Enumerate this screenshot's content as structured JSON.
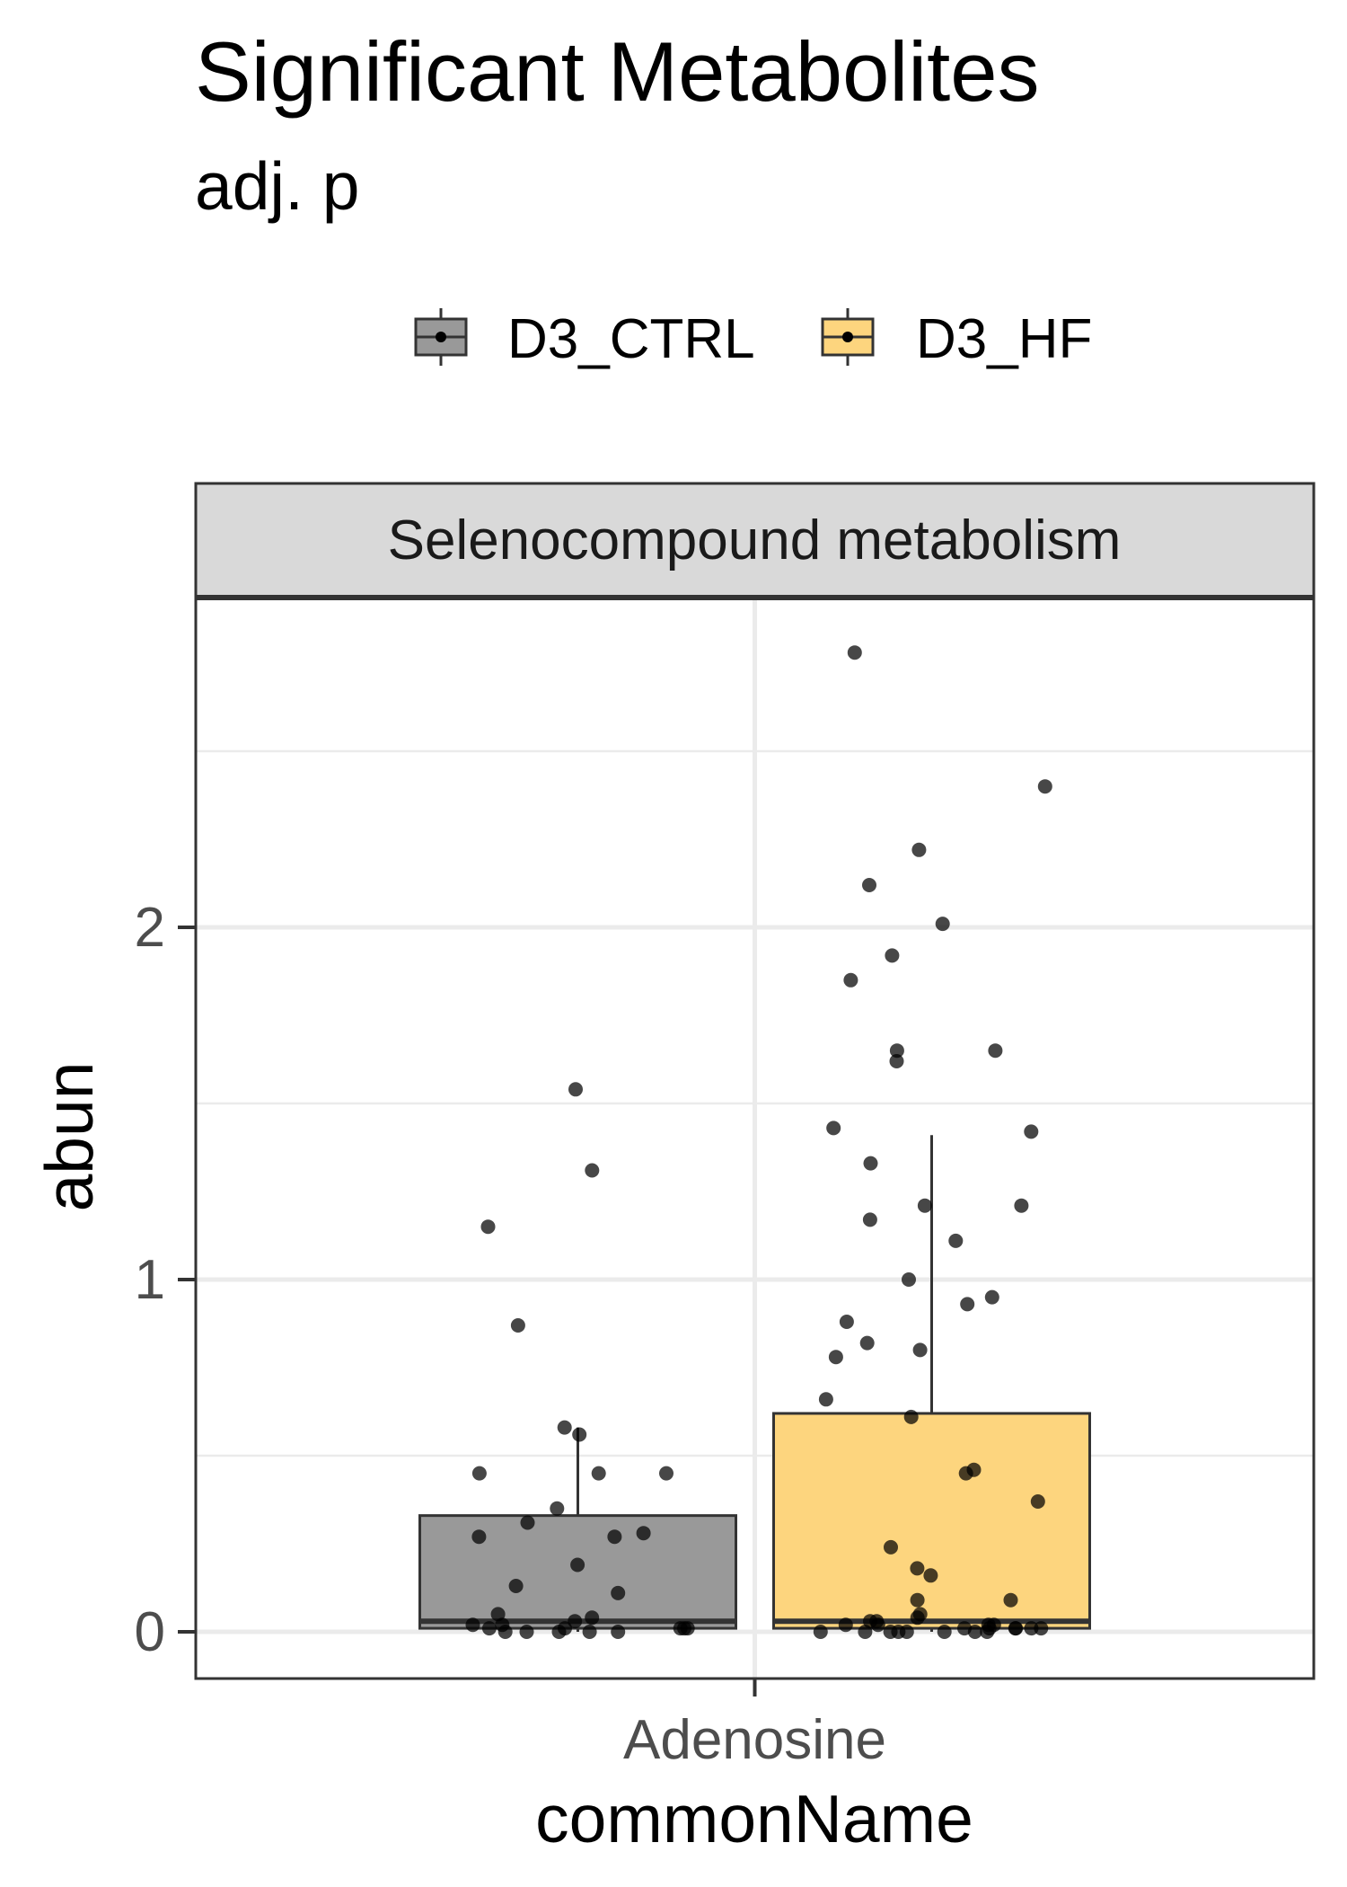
{
  "chart_data": {
    "type": "box",
    "title": "Significant Metabolites",
    "subtitle": "adj. p",
    "facet_label": "Selenocompound metabolism",
    "xlabel": "commonName",
    "ylabel": "abun",
    "categories": [
      "Adenosine"
    ],
    "ylim": [
      -0.13,
      2.88
    ],
    "yticks": [
      0,
      1,
      2
    ],
    "ytick_labels": [
      "0",
      "1",
      "2"
    ],
    "grid": true,
    "legend_position": "top",
    "legend_entries": [
      "D3_CTRL",
      "D3_HF"
    ],
    "series": [
      {
        "name": "D3_CTRL",
        "color": "#999999",
        "box": {
          "min": 0.0,
          "q1": 0.01,
          "median": 0.03,
          "q3": 0.33,
          "max": 0.58
        },
        "points": [
          1.54,
          1.31,
          1.15,
          0.87,
          0.58,
          0.56,
          0.45,
          0.45,
          0.45,
          0.35,
          0.31,
          0.28,
          0.27,
          0.27,
          0.19,
          0.13,
          0.11,
          0.05,
          0.04,
          0.03,
          0.02,
          0.02,
          0.01,
          0.01,
          0.01,
          0.01,
          0.01,
          0.0,
          0.0,
          0.0,
          0.0,
          0.0
        ]
      },
      {
        "name": "D3_HF",
        "color": "#fdd57e",
        "box": {
          "min": 0.0,
          "q1": 0.01,
          "median": 0.03,
          "q3": 0.62,
          "max": 1.41
        },
        "points": [
          2.78,
          2.4,
          2.22,
          2.12,
          2.01,
          1.92,
          1.85,
          1.65,
          1.65,
          1.62,
          1.43,
          1.42,
          1.33,
          1.21,
          1.21,
          1.17,
          1.11,
          1.0,
          0.95,
          0.93,
          0.88,
          0.82,
          0.8,
          0.78,
          0.66,
          0.61,
          0.46,
          0.45,
          0.37,
          0.24,
          0.18,
          0.16,
          0.09,
          0.09,
          0.05,
          0.04,
          0.03,
          0.03,
          0.02,
          0.02,
          0.02,
          0.02,
          0.01,
          0.01,
          0.01,
          0.01,
          0.01,
          0.01,
          0.0,
          0.0,
          0.0,
          0.0,
          0.0,
          0.0,
          0.0,
          0.0
        ]
      }
    ]
  }
}
